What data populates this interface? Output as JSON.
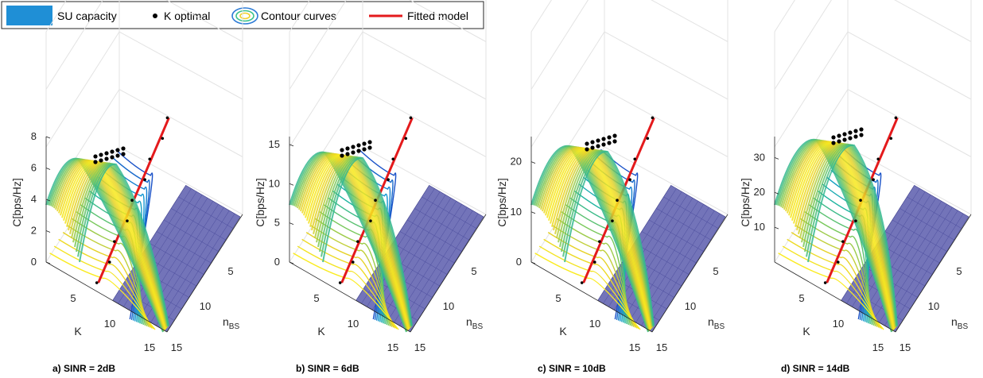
{
  "legend": {
    "items": [
      {
        "label": "SU capacity",
        "icon": "blue-surface-swatch",
        "color": "#1f8fd6"
      },
      {
        "label": "K optimal",
        "icon": "black-dot-marker",
        "color": "#000000"
      },
      {
        "label": "Contour curves",
        "icon": "contour-rings-icon",
        "color": "#f2d02b"
      },
      {
        "label": "Fitted model",
        "icon": "red-line-swatch",
        "color": "#e41a1c"
      }
    ]
  },
  "colors": {
    "plane": "#5b5cad",
    "fitted": "#e41a1c",
    "dots": "#000000",
    "contour_low": "#1a6fd0",
    "contour_high": "#f2e02b"
  },
  "chart_data": [
    {
      "type": "surface3d",
      "caption": "a) SINR = 2dB",
      "zlabel": "C[bps/Hz]",
      "xlabel": "K",
      "ylabel": "n",
      "ylabel_sub": "BS",
      "x_ticks": [
        "5",
        "10",
        "15"
      ],
      "y_ticks": [
        "5",
        "10",
        "15"
      ],
      "z_ticks": [
        "0",
        "2",
        "4",
        "6",
        "8"
      ],
      "z_max": 8,
      "peak_capacity": 7.5,
      "k_optimal_range": [
        6,
        8
      ]
    },
    {
      "type": "surface3d",
      "caption": "b) SINR = 6dB",
      "zlabel": "C[bps/Hz]",
      "xlabel": "K",
      "ylabel": "n",
      "ylabel_sub": "BS",
      "x_ticks": [
        "5",
        "10",
        "15"
      ],
      "y_ticks": [
        "5",
        "10",
        "15"
      ],
      "z_ticks": [
        "0",
        "5",
        "10",
        "15"
      ],
      "z_max": 16,
      "peak_capacity": 15,
      "k_optimal_range": [
        7,
        9
      ]
    },
    {
      "type": "surface3d",
      "caption": "c) SINR = 10dB",
      "zlabel": "C[bps/Hz]",
      "xlabel": "K",
      "ylabel": "n",
      "ylabel_sub": "BS",
      "x_ticks": [
        "5",
        "10",
        "15"
      ],
      "y_ticks": [
        "5",
        "10",
        "15"
      ],
      "z_ticks": [
        "0",
        "10",
        "20"
      ],
      "z_max": 25,
      "peak_capacity": 21,
      "k_optimal_range": [
        8,
        10
      ]
    },
    {
      "type": "surface3d",
      "caption": "d) SINR = 14dB",
      "zlabel": "C[bps/Hz]",
      "xlabel": "K",
      "ylabel": "n",
      "ylabel_sub": "BS",
      "x_ticks": [
        "5",
        "10",
        "15"
      ],
      "y_ticks": [
        "5",
        "10",
        "15"
      ],
      "z_ticks": [
        "10",
        "20",
        "30"
      ],
      "z_max": 36,
      "peak_capacity": 32,
      "k_optimal_range": [
        9,
        11
      ]
    }
  ]
}
